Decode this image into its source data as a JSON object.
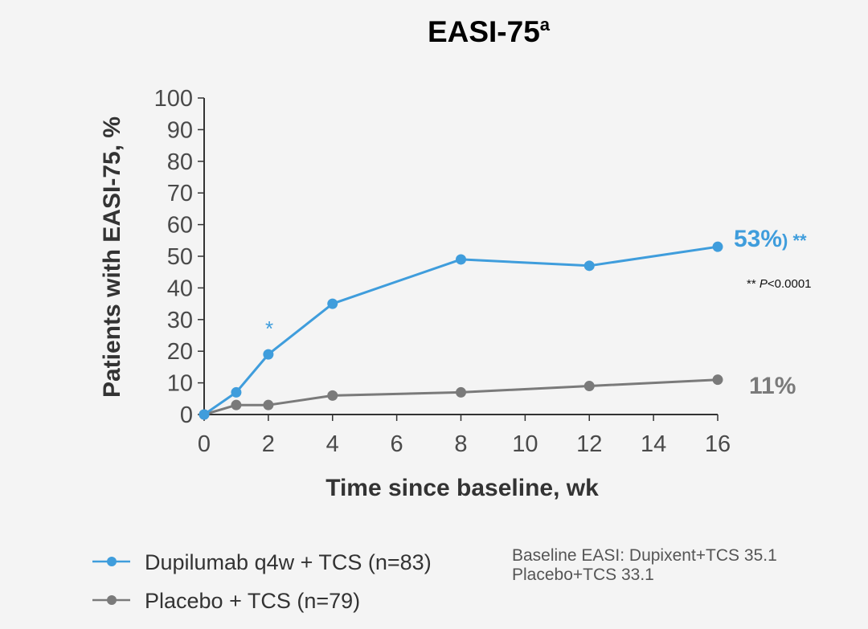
{
  "colors": {
    "dupilumab": "#3f9ddc",
    "placebo": "#7a7a7a",
    "title": "#0b5a4a",
    "axis": "#333333"
  },
  "chart_data": {
    "type": "line",
    "title": "EASI-75",
    "title_superscript": "a",
    "xlabel": "Time since baseline, wk",
    "ylabel": "Patients with EASI-75, %",
    "xlim": [
      0,
      16
    ],
    "ylim": [
      0,
      100
    ],
    "xticks": [
      "0",
      "2",
      "4",
      "6",
      "8",
      "10",
      "12",
      "14",
      "16"
    ],
    "yticks": [
      "0",
      "10",
      "20",
      "30",
      "40",
      "50",
      "60",
      "70",
      "80",
      "90",
      "100"
    ],
    "grid": false,
    "legend_position": "bottom-left",
    "series": [
      {
        "name": "Dupilumab q4w + TCS (n=83)",
        "color": "#3f9ddc",
        "x": [
          0,
          1,
          2,
          4,
          8,
          12,
          16
        ],
        "y": [
          0,
          7,
          19,
          35,
          49,
          47,
          53
        ],
        "end_label": "53%",
        "end_label_suffix": ") **"
      },
      {
        "name": "Placebo + TCS (n=79)",
        "color": "#7a7a7a",
        "x": [
          0,
          1,
          2,
          4,
          8,
          12,
          16
        ],
        "y": [
          0,
          3,
          3,
          6,
          7,
          9,
          11
        ],
        "end_label": "11%"
      }
    ],
    "annotations": [
      {
        "text": "*",
        "x": 2,
        "y": 27,
        "series": 0
      },
      {
        "text_marker": "**",
        "text_p": "P",
        "text_rest": "<0.0001"
      }
    ]
  },
  "baseline_note": {
    "line1": "Baseline EASI: Dupixent+TCS 35.1",
    "line2": "Placebo+TCS 33.1"
  }
}
